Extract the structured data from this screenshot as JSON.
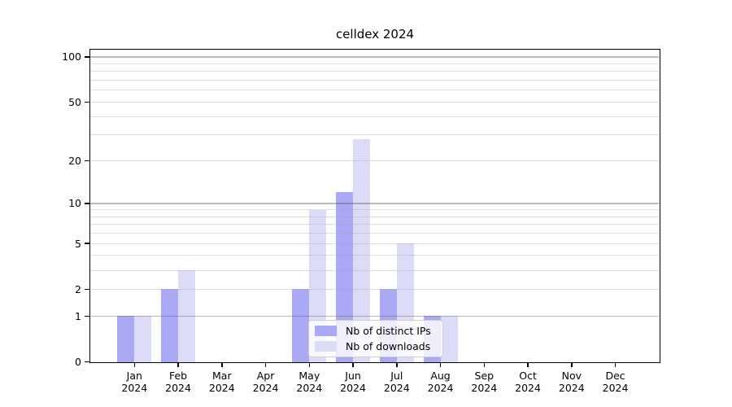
{
  "chart_data": {
    "type": "bar",
    "title": "celldex 2024",
    "categories": [
      "Jan 2024",
      "Feb 2024",
      "Mar 2024",
      "Apr 2024",
      "May 2024",
      "Jun 2024",
      "Jul 2024",
      "Aug 2024",
      "Sep 2024",
      "Oct 2024",
      "Nov 2024",
      "Dec 2024"
    ],
    "series": [
      {
        "name": "Nb of distinct IPs",
        "color": "#a9a9f6",
        "values": [
          1,
          2,
          0,
          0,
          2,
          12,
          2,
          1,
          0,
          0,
          0,
          0
        ]
      },
      {
        "name": "Nb of downloads",
        "color": "#dcdcf9",
        "values": [
          1,
          3,
          0,
          0,
          9,
          28,
          5,
          1,
          0,
          0,
          0,
          0
        ]
      }
    ],
    "xlabel": "",
    "ylabel": "",
    "yscale": "log1p",
    "ylim": [
      0,
      111
    ],
    "yticks": [
      0,
      1,
      2,
      5,
      10,
      20,
      50,
      100
    ],
    "minor_gridlines": [
      2,
      3,
      4,
      5,
      6,
      7,
      8,
      9,
      20,
      30,
      40,
      50,
      60,
      70,
      80,
      90
    ],
    "major_gridlines": [
      1,
      10,
      100
    ],
    "grid": true,
    "grid_on_top_of_bars": true,
    "legend_position": "lower center",
    "colors": {
      "axis": "#000000",
      "background": "#ffffff",
      "major_grid": "#bcbcbc",
      "minor_grid": "#e9e9e9",
      "legend_border": "#cccccc"
    }
  }
}
